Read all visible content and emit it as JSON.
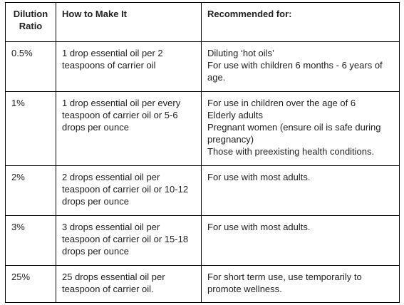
{
  "table": {
    "header": [
      "Dilution Ratio",
      "How to Make It",
      "Recommended for:"
    ],
    "rows": [
      [
        "0.5%",
        "1 drop essential oil per 2 teaspoons of carrier oil",
        [
          "Diluting ‘hot oils’",
          "For use with children 6 months - 6 years of age."
        ]
      ],
      [
        "1%",
        "1 drop essential oil per every teaspoon of carrier oil or 5-6 drops per ounce",
        [
          "For use in children over the age of 6",
          "Elderly adults",
          "Pregnant women (ensure oil is safe during pregnancy)",
          "Those with preexisting health conditions."
        ]
      ],
      [
        "2%",
        "2 drops essential oil per teaspoon of carrier oil or 10-12 drops per ounce",
        [
          "For use with most adults."
        ]
      ],
      [
        "3%",
        "3 drops essential oil per teaspoon of carrier oil or 15-18 drops per ounce",
        [
          "For use with most adults."
        ]
      ],
      [
        "25%",
        "25 drops essential oil per teaspoon of carrier oil.",
        [
          "For short term use, use temporarily to promote wellness."
        ]
      ]
    ]
  }
}
